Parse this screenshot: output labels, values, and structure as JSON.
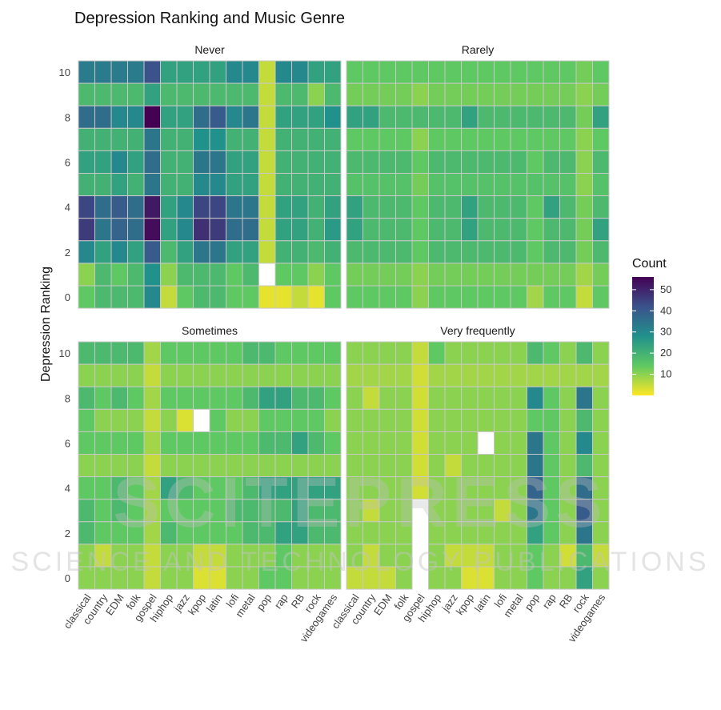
{
  "chart_data": {
    "type": "heatmap",
    "title": "Depression Ranking and Music Genre",
    "ylabel": "Depression Ranking",
    "xlabel": "",
    "x_categories": [
      "classical",
      "country",
      "EDM",
      "folk",
      "gospel",
      "hiphop",
      "jazz",
      "kpop",
      "latin",
      "lofi",
      "metal",
      "pop",
      "rap",
      "RB",
      "rock",
      "videogames"
    ],
    "y_categories": [
      0,
      1,
      2,
      3,
      4,
      5,
      6,
      7,
      8,
      9,
      10
    ],
    "y_ticks": [
      0,
      2,
      4,
      6,
      8,
      10
    ],
    "legend": {
      "title": "Count",
      "ticks": [
        10,
        20,
        30,
        40,
        50
      ],
      "range": [
        0,
        56
      ],
      "position": "right"
    },
    "grid": false,
    "panels": [
      {
        "name": "Never",
        "values": [
          [
            33,
            33,
            33,
            33,
            42,
            24,
            24,
            24,
            24,
            30,
            30,
            5,
            30,
            30,
            24,
            24
          ],
          [
            18,
            18,
            18,
            18,
            24,
            18,
            18,
            18,
            18,
            18,
            18,
            5,
            18,
            18,
            10,
            18
          ],
          [
            36,
            36,
            30,
            30,
            56,
            24,
            24,
            36,
            40,
            30,
            34,
            5,
            24,
            24,
            24,
            28
          ],
          [
            20,
            20,
            20,
            20,
            34,
            20,
            20,
            28,
            28,
            20,
            20,
            5,
            20,
            20,
            20,
            20
          ],
          [
            24,
            24,
            30,
            24,
            36,
            20,
            20,
            34,
            34,
            24,
            24,
            5,
            20,
            20,
            20,
            20
          ],
          [
            20,
            20,
            24,
            20,
            34,
            20,
            20,
            30,
            30,
            24,
            24,
            5,
            20,
            20,
            20,
            20
          ],
          [
            44,
            36,
            40,
            36,
            52,
            24,
            30,
            44,
            44,
            34,
            34,
            5,
            24,
            24,
            20,
            24
          ],
          [
            46,
            34,
            38,
            36,
            54,
            24,
            30,
            48,
            46,
            36,
            36,
            5,
            24,
            24,
            20,
            26
          ],
          [
            30,
            24,
            30,
            24,
            40,
            18,
            24,
            34,
            34,
            24,
            24,
            5,
            20,
            20,
            18,
            20
          ],
          [
            10,
            18,
            14,
            18,
            28,
            10,
            18,
            18,
            18,
            14,
            18,
            null,
            14,
            14,
            10,
            14
          ],
          [
            14,
            18,
            18,
            18,
            30,
            5,
            14,
            18,
            18,
            14,
            14,
            2,
            2,
            5,
            2,
            14
          ]
        ]
      },
      {
        "name": "Rarely",
        "values": [
          [
            14,
            14,
            14,
            14,
            14,
            14,
            14,
            14,
            14,
            14,
            14,
            14,
            14,
            14,
            12,
            14
          ],
          [
            12,
            12,
            12,
            12,
            10,
            12,
            12,
            12,
            12,
            12,
            12,
            12,
            12,
            12,
            10,
            12
          ],
          [
            24,
            24,
            18,
            18,
            18,
            18,
            18,
            24,
            18,
            18,
            18,
            18,
            18,
            18,
            12,
            24
          ],
          [
            14,
            14,
            14,
            14,
            10,
            14,
            14,
            14,
            14,
            14,
            14,
            14,
            14,
            14,
            10,
            14
          ],
          [
            18,
            18,
            18,
            18,
            14,
            18,
            18,
            18,
            18,
            18,
            18,
            14,
            18,
            18,
            10,
            18
          ],
          [
            16,
            16,
            16,
            16,
            12,
            16,
            16,
            16,
            16,
            16,
            16,
            16,
            16,
            16,
            10,
            16
          ],
          [
            24,
            18,
            18,
            18,
            14,
            18,
            18,
            24,
            18,
            18,
            18,
            14,
            24,
            18,
            12,
            18
          ],
          [
            24,
            18,
            18,
            18,
            14,
            18,
            18,
            24,
            18,
            18,
            18,
            14,
            18,
            18,
            12,
            24
          ],
          [
            18,
            18,
            18,
            18,
            14,
            18,
            18,
            18,
            18,
            18,
            18,
            14,
            18,
            18,
            12,
            18
          ],
          [
            12,
            12,
            12,
            12,
            10,
            12,
            12,
            12,
            12,
            12,
            12,
            12,
            12,
            12,
            8,
            12
          ],
          [
            14,
            14,
            14,
            14,
            10,
            14,
            14,
            14,
            14,
            14,
            14,
            8,
            14,
            14,
            5,
            14
          ]
        ]
      },
      {
        "name": "Sometimes",
        "values": [
          [
            18,
            18,
            18,
            18,
            8,
            14,
            14,
            14,
            14,
            14,
            18,
            18,
            14,
            14,
            14,
            14
          ],
          [
            10,
            10,
            10,
            10,
            5,
            10,
            10,
            10,
            10,
            10,
            10,
            10,
            10,
            10,
            10,
            10
          ],
          [
            18,
            14,
            18,
            14,
            8,
            14,
            14,
            14,
            14,
            14,
            18,
            24,
            24,
            18,
            18,
            14
          ],
          [
            14,
            10,
            10,
            10,
            5,
            10,
            3,
            null,
            14,
            10,
            10,
            14,
            14,
            14,
            14,
            10
          ],
          [
            14,
            14,
            14,
            14,
            8,
            14,
            14,
            14,
            14,
            14,
            14,
            18,
            18,
            24,
            18,
            14
          ],
          [
            10,
            10,
            10,
            10,
            5,
            10,
            10,
            10,
            10,
            10,
            10,
            10,
            10,
            10,
            10,
            10
          ],
          [
            14,
            14,
            18,
            14,
            8,
            24,
            18,
            14,
            14,
            14,
            18,
            24,
            24,
            24,
            24,
            24
          ],
          [
            18,
            14,
            18,
            14,
            8,
            14,
            14,
            14,
            14,
            18,
            18,
            18,
            18,
            24,
            18,
            18
          ],
          [
            18,
            14,
            14,
            14,
            8,
            18,
            14,
            14,
            14,
            14,
            18,
            18,
            24,
            24,
            18,
            18
          ],
          [
            10,
            5,
            10,
            10,
            5,
            10,
            10,
            5,
            5,
            10,
            10,
            10,
            14,
            10,
            10,
            10
          ],
          [
            10,
            10,
            10,
            10,
            5,
            10,
            10,
            3,
            3,
            10,
            10,
            14,
            14,
            10,
            10,
            10
          ]
        ]
      },
      {
        "name": "Very frequently",
        "values": [
          [
            10,
            10,
            10,
            10,
            5,
            14,
            10,
            10,
            10,
            10,
            10,
            18,
            14,
            10,
            18,
            10
          ],
          [
            8,
            8,
            8,
            8,
            4,
            8,
            8,
            8,
            8,
            8,
            8,
            8,
            8,
            8,
            8,
            8
          ],
          [
            10,
            5,
            10,
            10,
            4,
            10,
            10,
            10,
            10,
            10,
            10,
            30,
            14,
            10,
            34,
            10
          ],
          [
            10,
            10,
            10,
            10,
            4,
            10,
            10,
            10,
            10,
            10,
            10,
            14,
            14,
            10,
            18,
            10
          ],
          [
            10,
            10,
            10,
            10,
            4,
            10,
            10,
            10,
            null,
            10,
            10,
            34,
            14,
            10,
            30,
            10
          ],
          [
            10,
            10,
            10,
            10,
            4,
            10,
            5,
            10,
            10,
            10,
            10,
            34,
            14,
            10,
            18,
            10
          ],
          [
            10,
            10,
            10,
            10,
            4,
            10,
            10,
            10,
            10,
            10,
            10,
            38,
            14,
            10,
            36,
            10
          ],
          [
            10,
            5,
            10,
            10,
            null,
            10,
            10,
            10,
            10,
            5,
            10,
            34,
            14,
            10,
            40,
            10
          ],
          [
            10,
            10,
            10,
            10,
            null,
            10,
            10,
            10,
            10,
            10,
            10,
            24,
            14,
            10,
            34,
            10
          ],
          [
            10,
            5,
            10,
            10,
            null,
            10,
            5,
            5,
            5,
            10,
            10,
            14,
            10,
            4,
            18,
            5
          ],
          [
            5,
            5,
            5,
            10,
            null,
            10,
            10,
            3,
            3,
            10,
            10,
            14,
            10,
            10,
            24,
            10
          ]
        ]
      }
    ]
  },
  "watermark": {
    "main": "SCITEPRESS",
    "sub": "SCIENCE AND TECHNOLOGY PUBLICATIONS"
  }
}
